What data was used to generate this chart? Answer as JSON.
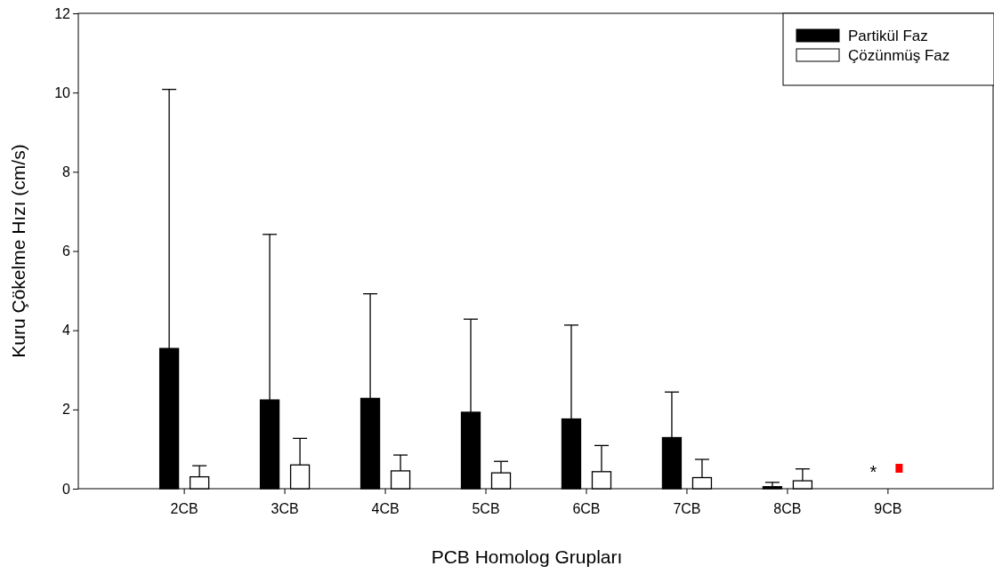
{
  "chart_data": {
    "type": "bar",
    "xlabel": "PCB Homolog Grupları",
    "ylabel": "Kuru Çökelme Hızı (cm/s)",
    "categories": [
      "2CB",
      "3CB",
      "4CB",
      "5CB",
      "6CB",
      "7CB",
      "8CB",
      "9CB"
    ],
    "series": [
      {
        "name": "Partikül Faz",
        "color": "#000000",
        "values": [
          3.54,
          2.24,
          2.28,
          1.93,
          1.76,
          1.29,
          0.05,
          null
        ],
        "errors": [
          [
            3.54,
            10.08
          ],
          [
            2.24,
            6.42
          ],
          [
            2.28,
            4.92
          ],
          [
            1.93,
            4.28
          ],
          [
            1.76,
            4.13
          ],
          [
            1.29,
            2.44
          ],
          [
            0.05,
            0.16
          ],
          null
        ]
      },
      {
        "name": "Çözünmüş Faz",
        "color": "#ffffff",
        "values": [
          0.3,
          0.6,
          0.45,
          0.4,
          0.43,
          0.28,
          0.2,
          null
        ],
        "errors": [
          [
            0.3,
            0.58
          ],
          [
            0.6,
            1.27
          ],
          [
            0.45,
            0.85
          ],
          [
            0.4,
            0.69
          ],
          [
            0.43,
            1.09
          ],
          [
            0.28,
            0.74
          ],
          [
            0.2,
            0.5
          ],
          null
        ]
      }
    ],
    "ylim": [
      0,
      12
    ],
    "yticks": [
      0,
      2,
      4,
      6,
      8,
      10,
      12
    ],
    "legend": "top right",
    "annotations": [
      "*"
    ]
  }
}
